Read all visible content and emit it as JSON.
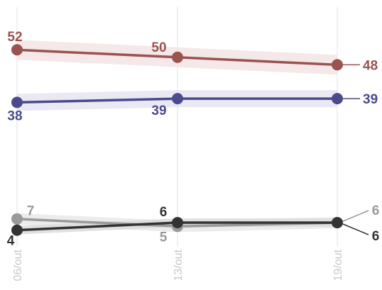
{
  "chart_data": {
    "type": "line",
    "title": "",
    "xlabel": "",
    "ylabel": "",
    "x": [
      "06/out",
      "13/out",
      "19/out"
    ],
    "ylim": [
      0,
      60
    ],
    "grid": "vertical",
    "legend": "none",
    "series": [
      {
        "color": "#9b5350",
        "band": "#f3e4e4",
        "values": [
          52,
          50,
          48
        ],
        "labels": [
          "52",
          "50",
          "48"
        ]
      },
      {
        "color": "#4b4a8c",
        "band": "#e6e5f1",
        "values": [
          38,
          39,
          39
        ],
        "labels": [
          "38",
          "39",
          "39"
        ]
      },
      {
        "color": "#9a9a9a",
        "band": "#e9e9e9",
        "values": [
          7,
          5,
          6
        ],
        "labels": [
          "7",
          "5",
          "6"
        ]
      },
      {
        "color": "#333333",
        "band": "#dcdcdc",
        "values": [
          4,
          6,
          6
        ],
        "labels": [
          "4",
          "6",
          "6"
        ]
      }
    ]
  }
}
